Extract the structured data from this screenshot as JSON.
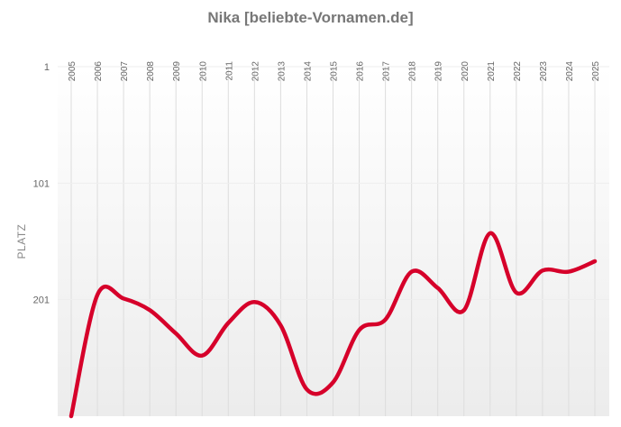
{
  "chart_data": {
    "type": "line",
    "title": "Nika [beliebte-Vornamen.de]",
    "ylabel": "PLATZ",
    "xlabel": "",
    "x": [
      "2005",
      "2006",
      "2007",
      "2008",
      "2009",
      "2010",
      "2011",
      "2012",
      "2013",
      "2014",
      "2015",
      "2016",
      "2017",
      "2018",
      "2019",
      "2020",
      "2021",
      "2022",
      "2023",
      "2024",
      "2025"
    ],
    "y_ticks": [
      "1",
      "101",
      "201"
    ],
    "y_tick_values": [
      1,
      101,
      201
    ],
    "y_inverted": true,
    "ylim": [
      1,
      301
    ],
    "series": [
      {
        "color": "#d6002a",
        "values": [
          301,
          197,
          200,
          210,
          230,
          249,
          221,
          203,
          223,
          278,
          272,
          227,
          218,
          177,
          191,
          210,
          144,
          195,
          176,
          177,
          168
        ]
      }
    ],
    "grid": true,
    "legend": "none"
  }
}
